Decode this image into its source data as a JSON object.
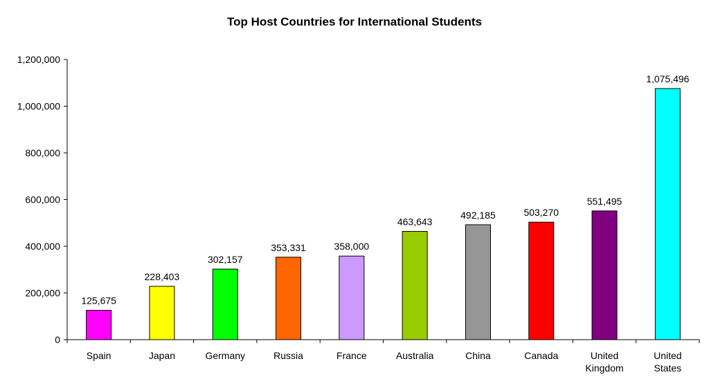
{
  "chart_data": {
    "type": "bar",
    "title": "Top Host Countries for International Students",
    "xlabel": "",
    "ylabel": "",
    "ylim": [
      0,
      1200000
    ],
    "yticks": [
      "0",
      "200,000",
      "400,000",
      "600,000",
      "800,000",
      "1,000,000",
      "1,200,000"
    ],
    "grid": false,
    "categories": [
      [
        "Spain"
      ],
      [
        "Japan"
      ],
      [
        "Germany"
      ],
      [
        "Russia"
      ],
      [
        "France"
      ],
      [
        "Australia"
      ],
      [
        "China"
      ],
      [
        "Canada"
      ],
      [
        "United",
        "Kingdom"
      ],
      [
        "United",
        "States"
      ]
    ],
    "values": [
      125675,
      228403,
      302157,
      353331,
      358000,
      463643,
      492185,
      503270,
      551495,
      1075496
    ],
    "value_labels": [
      "125,675",
      "228,403",
      "302,157",
      "353,331",
      "358,000",
      "463,643",
      "492,185",
      "503,270",
      "551,495",
      "1,075,496"
    ],
    "colors": [
      "#ff00ff",
      "#ffff00",
      "#00ff00",
      "#ff6600",
      "#cc99ff",
      "#99cc00",
      "#969696",
      "#ff0000",
      "#800080",
      "#00ffff"
    ]
  }
}
